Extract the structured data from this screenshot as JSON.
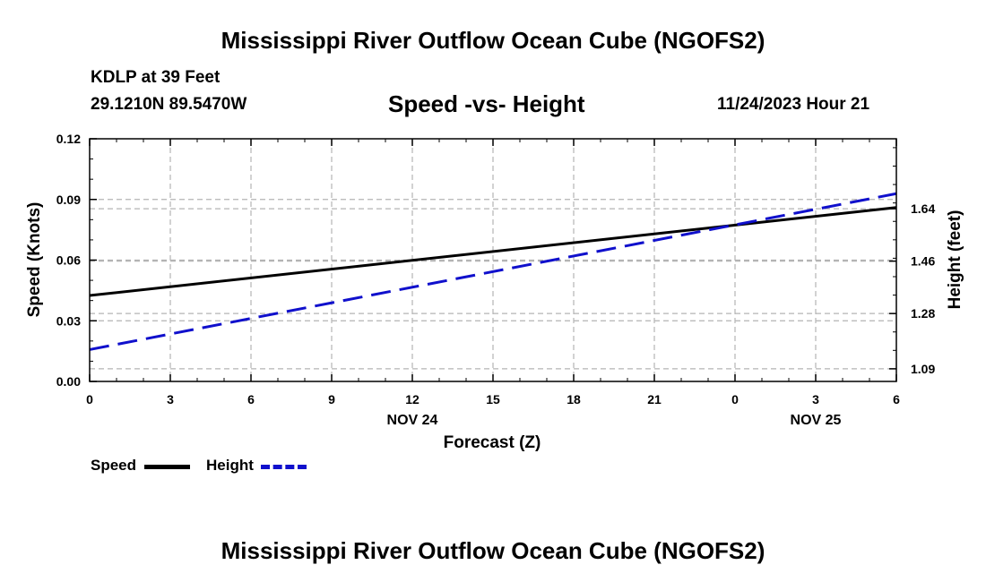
{
  "header": {
    "title": "Mississippi River Outflow Ocean Cube (NGOFS2)",
    "station": "KDLP at 39 Feet",
    "coords": "29.1210N  89.5470W",
    "date": "11/24/2023 Hour 21"
  },
  "footer": {
    "title": "Mississippi River Outflow Ocean Cube (NGOFS2)"
  },
  "colors": {
    "speed": "#000000",
    "height": "#1010cc",
    "grid": "#b4b4b4"
  },
  "chart_data": {
    "type": "line",
    "title": "Speed -vs- Height",
    "xlabel": "Forecast (Z)",
    "ylabel": "Speed (Knots)",
    "y2label": "Height (feet)",
    "x_ticks": [
      "0",
      "3",
      "6",
      "9",
      "12",
      "15",
      "18",
      "21",
      "0",
      "3",
      "6"
    ],
    "date_labels": [
      {
        "text": "NOV 24",
        "at_hour": 12
      },
      {
        "text": "NOV 25",
        "at_hour": 27
      }
    ],
    "x": [
      0,
      30
    ],
    "xlim": [
      0,
      30
    ],
    "ylim": [
      0,
      0.12
    ],
    "y_ticks": [
      "0.00",
      "0.03",
      "0.06",
      "0.09",
      "0.12"
    ],
    "y_tick_values": [
      0,
      0.03,
      0.06,
      0.09,
      0.12
    ],
    "y2lim": [
      1.0466,
      1.8805
    ],
    "y2_ticks": [
      "1.09",
      "1.28",
      "1.46",
      "1.64"
    ],
    "y2_tick_values": [
      1.09,
      1.28,
      1.46,
      1.64
    ],
    "series": [
      {
        "name": "Speed",
        "axis": "left",
        "style": "solid",
        "x": [
          0,
          30
        ],
        "values": [
          0.0425,
          0.086
        ]
      },
      {
        "name": "Height",
        "axis": "right",
        "style": "dashed",
        "x": [
          0,
          30
        ],
        "values": [
          1.156,
          1.692
        ]
      }
    ],
    "legend": [
      "Speed",
      "Height"
    ]
  }
}
